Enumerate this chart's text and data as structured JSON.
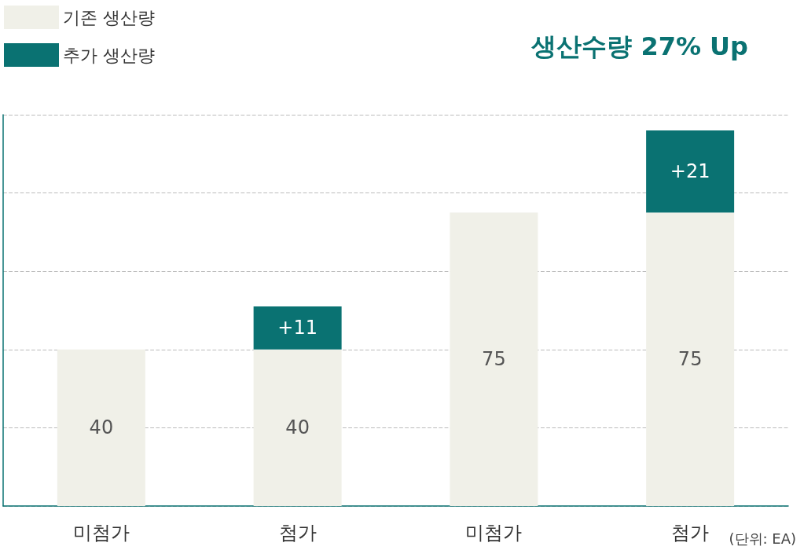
{
  "chart_data": {
    "type": "bar",
    "title": "생산수량 27% Up",
    "categories": [
      "미첨가",
      "첨가",
      "미첨가",
      "첨가"
    ],
    "series": [
      {
        "name": "기존 생산량",
        "color": "#f0f0e8",
        "values": [
          40,
          40,
          75,
          75
        ],
        "value_labels": [
          "40",
          "40",
          "75",
          "75"
        ]
      },
      {
        "name": "추가 생산량",
        "color": "#0a7272",
        "values": [
          null,
          11,
          null,
          21
        ],
        "value_labels": [
          null,
          "+11",
          null,
          "+21"
        ]
      }
    ],
    "stacked": true,
    "ylim": [
      0,
      100
    ],
    "yticks": [
      {
        "value": 0,
        "label": null
      },
      {
        "value": 20,
        "label": null
      },
      {
        "value": 40,
        "label": null
      },
      {
        "value": 60,
        "label": null
      },
      {
        "value": 80,
        "label": null
      },
      {
        "value": 100,
        "label": null
      }
    ],
    "grid": "y",
    "legend": "top left",
    "tick_labels": "x",
    "annotations": [
      "(단위: EA)"
    ]
  }
}
